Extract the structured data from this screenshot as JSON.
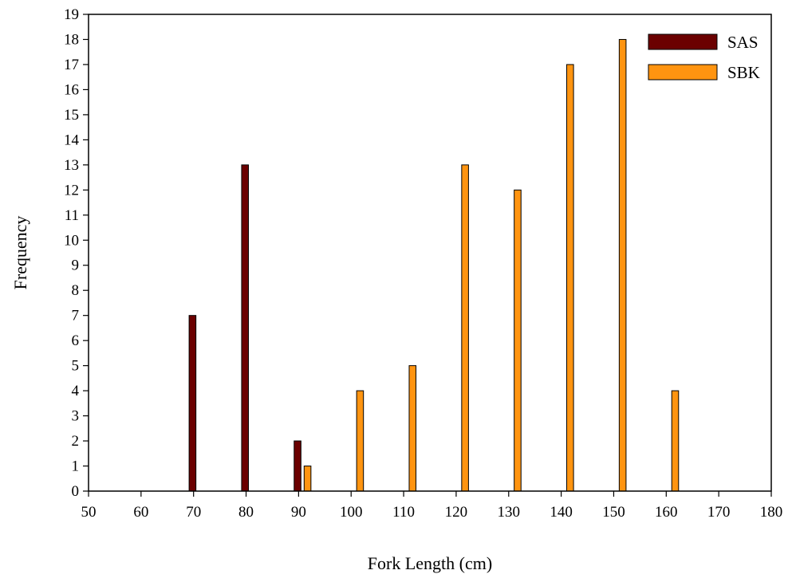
{
  "chart_data": {
    "type": "bar",
    "title": "",
    "xlabel": "Fork Length (cm)",
    "ylabel": "Frequency",
    "xlim": [
      50,
      180
    ],
    "ylim": [
      0,
      19
    ],
    "x_ticks": [
      50,
      60,
      70,
      80,
      90,
      100,
      110,
      120,
      130,
      140,
      150,
      160,
      170,
      180
    ],
    "y_ticks": [
      0,
      1,
      2,
      3,
      4,
      5,
      6,
      7,
      8,
      9,
      10,
      11,
      12,
      13,
      14,
      15,
      16,
      17,
      18,
      19
    ],
    "grid": false,
    "legend_position": "top-right",
    "series": [
      {
        "name": "SAS",
        "color": "#6b0000",
        "points": [
          {
            "x": 70,
            "y": 7
          },
          {
            "x": 80,
            "y": 13
          },
          {
            "x": 90,
            "y": 2
          }
        ]
      },
      {
        "name": "SBK",
        "color": "#ff9410",
        "points": [
          {
            "x": 90,
            "y": 1
          },
          {
            "x": 100,
            "y": 4
          },
          {
            "x": 110,
            "y": 5
          },
          {
            "x": 120,
            "y": 13
          },
          {
            "x": 130,
            "y": 12
          },
          {
            "x": 140,
            "y": 17
          },
          {
            "x": 150,
            "y": 18
          },
          {
            "x": 160,
            "y": 4
          }
        ]
      }
    ]
  }
}
